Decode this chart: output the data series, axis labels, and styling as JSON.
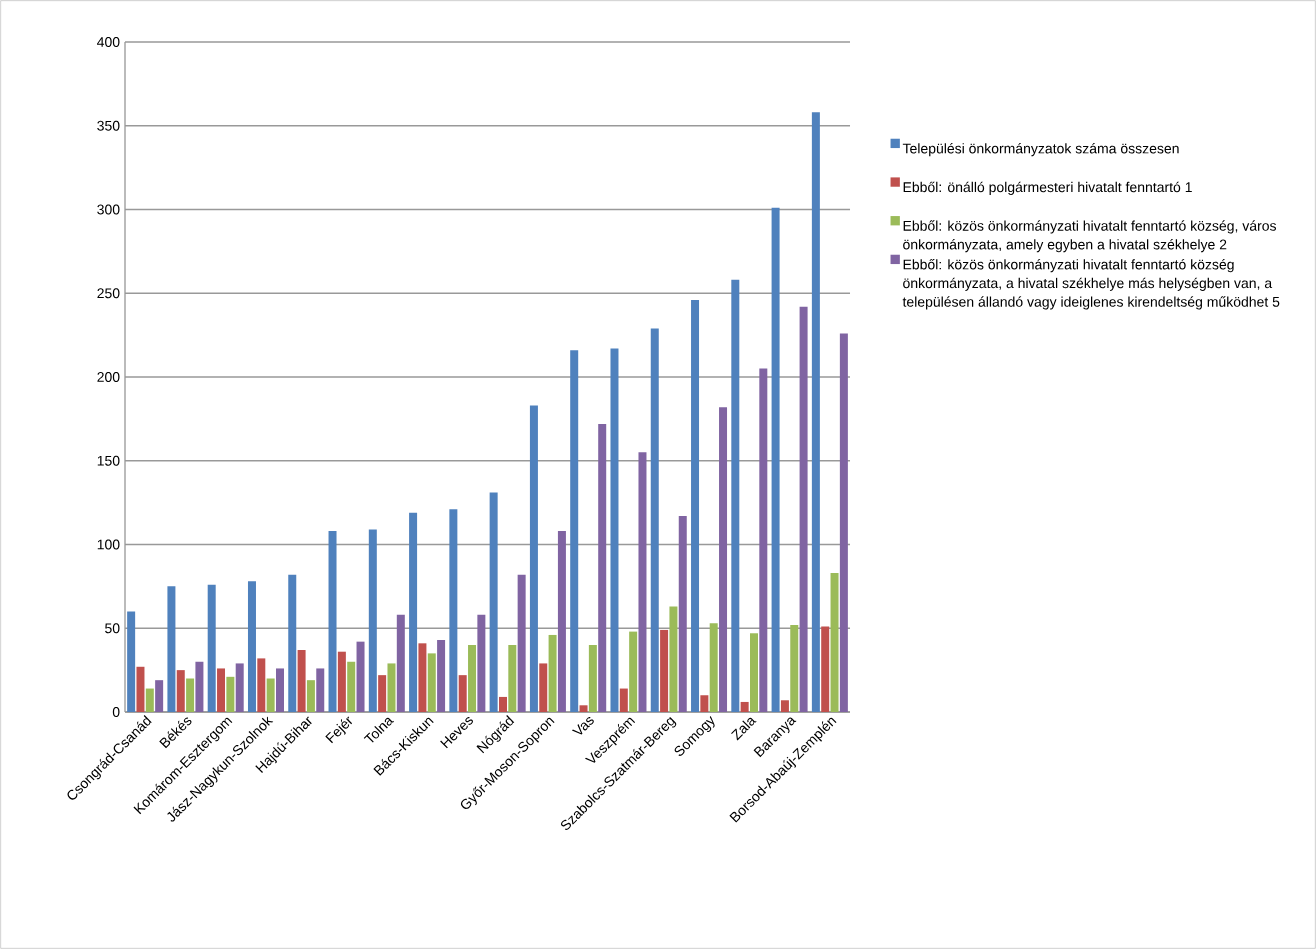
{
  "chart_data": {
    "type": "bar",
    "categories": [
      "Csongrád-Csanád",
      "Békés",
      "Komárom-Esztergom",
      "Jász-Nagykun-Szolnok",
      "Hajdú-Bihar",
      "Fejér",
      "Tolna",
      "Bács-Kiskun",
      "Heves",
      "Nógrád",
      "Győr-Moson-Sopron",
      "Vas",
      "Veszprém",
      "Szabolcs-Szatmár-Bereg",
      "Somogy",
      "Zala",
      "Baranya",
      "Borsod-Abaúj-Zemplén"
    ],
    "series": [
      {
        "name": "Települési önkormányzatok száma összesen",
        "color": "#4f81bd",
        "values": [
          60,
          75,
          76,
          78,
          82,
          108,
          109,
          119,
          121,
          131,
          183,
          216,
          217,
          229,
          246,
          258,
          301,
          358
        ]
      },
      {
        "name": "Ebből: önálló polgármesteri hivatalt fenntartó 1",
        "color": "#c0504d",
        "values": [
          27,
          25,
          26,
          32,
          37,
          36,
          22,
          41,
          22,
          9,
          29,
          4,
          14,
          49,
          10,
          6,
          7,
          51
        ]
      },
      {
        "name": "Ebből: közös önkormányzati hivatalt fenntartó község, város önkormányzata, amely egyben a hivatal székhelye 2",
        "color": "#9bbb59",
        "values": [
          14,
          20,
          21,
          20,
          19,
          30,
          29,
          35,
          40,
          40,
          46,
          40,
          48,
          63,
          53,
          47,
          52,
          83
        ]
      },
      {
        "name": "Ebből: közös önkormányzati hivatalt fenntartó község önkormányzata, a hivatal székhelye más helységben van, a településen állandó vagy ideiglenes kirendeltség működhet 5",
        "color": "#8064a2",
        "values": [
          19,
          30,
          29,
          26,
          26,
          42,
          58,
          43,
          58,
          82,
          108,
          172,
          155,
          117,
          182,
          205,
          242,
          226
        ]
      }
    ],
    "ylim": [
      0,
      400
    ],
    "yticks": [
      0,
      50,
      100,
      150,
      200,
      250,
      300,
      350,
      400
    ],
    "grid": "y",
    "legend": "right"
  }
}
